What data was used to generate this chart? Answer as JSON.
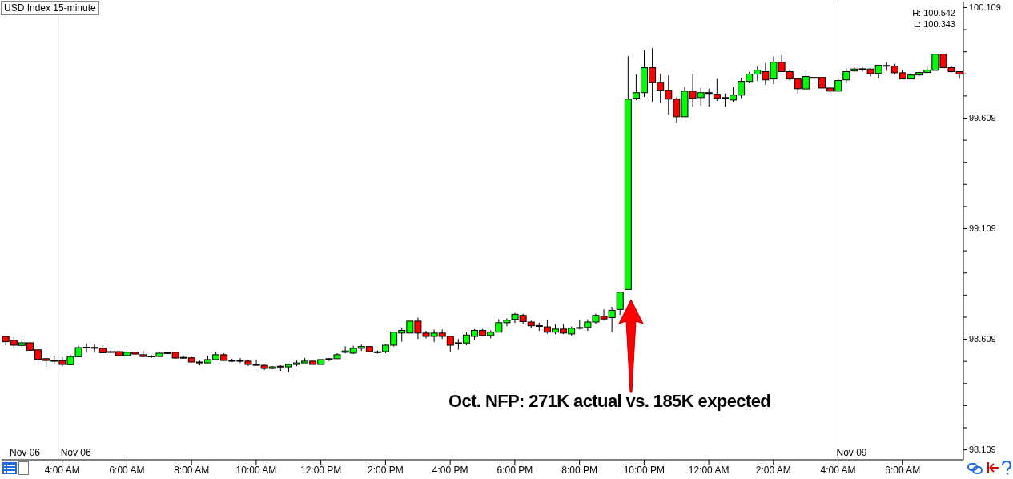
{
  "chart_data": {
    "type": "candlestick",
    "title": "USD Index 15-minute",
    "categories": [
      null,
      null,
      null,
      null,
      null,
      null,
      null,
      "4:00 AM",
      null,
      null,
      null,
      null,
      null,
      null,
      null,
      "6:00 AM",
      null,
      null,
      null,
      null,
      null,
      null,
      null,
      "8:00 AM",
      null,
      null,
      null,
      null,
      null,
      null,
      null,
      "10:00 AM",
      null,
      null,
      null,
      null,
      null,
      null,
      null,
      "12:00 PM",
      null,
      null,
      null,
      null,
      null,
      null,
      null,
      "2:00 PM",
      null,
      null,
      null,
      null,
      null,
      null,
      null,
      "4:00 PM",
      null,
      null,
      null,
      null,
      null,
      null,
      null,
      "6:00 PM",
      null,
      null,
      null,
      null,
      null,
      null,
      null,
      "8:00 PM",
      null,
      null,
      null,
      null,
      null,
      null,
      null,
      "10:00 PM",
      null,
      null,
      null,
      null,
      null,
      null,
      null,
      "12:00 AM",
      null,
      null,
      null,
      null,
      null,
      null,
      null,
      "2:00 AM",
      null,
      null,
      null,
      null,
      null,
      null,
      null,
      "4:00 AM",
      null,
      null,
      null,
      null,
      null,
      null,
      null,
      "6:00 AM",
      null,
      null,
      null,
      null,
      null,
      null,
      null
    ],
    "ohlc": [
      [
        98.622,
        98.626,
        98.582,
        98.598
      ],
      [
        98.604,
        98.619,
        98.57,
        98.582
      ],
      [
        98.581,
        98.611,
        98.573,
        98.593
      ],
      [
        98.593,
        98.604,
        98.559,
        98.559
      ],
      [
        98.561,
        98.571,
        98.501,
        98.519
      ],
      [
        98.521,
        98.521,
        98.483,
        98.513
      ],
      [
        98.513,
        98.535,
        98.495,
        98.513
      ],
      [
        98.512,
        98.529,
        98.487,
        98.495
      ],
      [
        98.494,
        98.539,
        98.491,
        98.531
      ],
      [
        98.53,
        98.58,
        98.527,
        98.571
      ],
      [
        98.573,
        98.59,
        98.548,
        98.573
      ],
      [
        98.572,
        98.585,
        98.548,
        98.568
      ],
      [
        98.568,
        98.582,
        98.548,
        98.548
      ],
      [
        98.553,
        98.565,
        98.548,
        98.55
      ],
      [
        98.553,
        98.571,
        98.535,
        98.535
      ],
      [
        98.535,
        98.55,
        98.535,
        98.55
      ],
      [
        98.55,
        98.55,
        98.539,
        98.542
      ],
      [
        98.539,
        98.558,
        98.529,
        98.531
      ],
      [
        98.533,
        98.539,
        98.524,
        98.533
      ],
      [
        98.531,
        98.55,
        98.531,
        98.546
      ],
      [
        98.546,
        98.551,
        98.542,
        98.548
      ],
      [
        98.55,
        98.55,
        98.521,
        98.524
      ],
      [
        98.527,
        98.534,
        98.522,
        98.527
      ],
      [
        98.525,
        98.529,
        98.504,
        98.506
      ],
      [
        98.506,
        98.512,
        98.49,
        98.502
      ],
      [
        98.502,
        98.535,
        98.502,
        98.517
      ],
      [
        98.517,
        98.551,
        98.517,
        98.539
      ],
      [
        98.539,
        98.546,
        98.511,
        98.513
      ],
      [
        98.513,
        98.521,
        98.506,
        98.513
      ],
      [
        98.513,
        98.524,
        98.502,
        98.51
      ],
      [
        98.51,
        98.517,
        98.488,
        98.495
      ],
      [
        98.495,
        98.517,
        98.491,
        98.491
      ],
      [
        98.491,
        98.495,
        98.47,
        98.477
      ],
      [
        98.477,
        98.488,
        98.473,
        98.484
      ],
      [
        98.487,
        98.491,
        98.466,
        98.484
      ],
      [
        98.484,
        98.499,
        98.459,
        98.495
      ],
      [
        98.495,
        98.513,
        98.488,
        98.502
      ],
      [
        98.502,
        98.524,
        98.502,
        98.51
      ],
      [
        98.51,
        98.51,
        98.495,
        98.495
      ],
      [
        98.495,
        98.517,
        98.495,
        98.517
      ],
      [
        98.517,
        98.524,
        98.51,
        98.521
      ],
      [
        98.521,
        98.546,
        98.521,
        98.539
      ],
      [
        98.55,
        98.577,
        98.545,
        98.556
      ],
      [
        98.546,
        98.58,
        98.543,
        98.568
      ],
      [
        98.568,
        98.585,
        98.556,
        98.576
      ],
      [
        98.576,
        98.576,
        98.553,
        98.553
      ],
      [
        98.552,
        98.558,
        98.544,
        98.552
      ],
      [
        98.553,
        98.586,
        98.546,
        98.582
      ],
      [
        98.582,
        98.641,
        98.576,
        98.641
      ],
      [
        98.637,
        98.659,
        98.598,
        98.649
      ],
      [
        98.637,
        98.691,
        98.637,
        98.691
      ],
      [
        98.691,
        98.707,
        98.61,
        98.637
      ],
      [
        98.637,
        98.647,
        98.613,
        98.622
      ],
      [
        98.622,
        98.653,
        98.596,
        98.637
      ],
      [
        98.637,
        98.653,
        98.61,
        98.622
      ],
      [
        98.622,
        98.622,
        98.55,
        98.582
      ],
      [
        98.593,
        98.61,
        98.562,
        98.59
      ],
      [
        98.592,
        98.641,
        98.582,
        98.628
      ],
      [
        98.622,
        98.655,
        98.607,
        98.649
      ],
      [
        98.649,
        98.655,
        98.622,
        98.626
      ],
      [
        98.626,
        98.649,
        98.613,
        98.641
      ],
      [
        98.641,
        98.699,
        98.641,
        98.684
      ],
      [
        98.684,
        98.704,
        98.668,
        98.695
      ],
      [
        98.699,
        98.728,
        98.683,
        98.722
      ],
      [
        98.717,
        98.725,
        98.677,
        98.689
      ],
      [
        98.687,
        98.693,
        98.659,
        98.67
      ],
      [
        98.671,
        98.684,
        98.647,
        98.667
      ],
      [
        98.665,
        98.695,
        98.634,
        98.641
      ],
      [
        98.641,
        98.677,
        98.632,
        98.655
      ],
      [
        98.655,
        98.677,
        98.632,
        98.637
      ],
      [
        98.633,
        98.667,
        98.626,
        98.659
      ],
      [
        98.662,
        98.695,
        98.653,
        98.662
      ],
      [
        98.662,
        98.699,
        98.647,
        98.687
      ],
      [
        98.687,
        98.725,
        98.679,
        98.717
      ],
      [
        98.713,
        98.744,
        98.693,
        98.701
      ],
      [
        98.707,
        98.756,
        98.641,
        98.74
      ],
      [
        98.744,
        98.822,
        98.719,
        98.822
      ],
      [
        98.834,
        99.889,
        98.834,
        99.695
      ],
      [
        99.699,
        99.807,
        99.69,
        99.724
      ],
      [
        99.724,
        99.916,
        99.705,
        99.837
      ],
      [
        99.837,
        99.925,
        99.683,
        99.771
      ],
      [
        99.771,
        99.809,
        99.679,
        99.735
      ],
      [
        99.735,
        99.802,
        99.625,
        99.695
      ],
      [
        99.695,
        99.703,
        99.588,
        99.615
      ],
      [
        99.615,
        99.75,
        99.615,
        99.731
      ],
      [
        99.731,
        99.809,
        99.661,
        99.699
      ],
      [
        99.702,
        99.746,
        99.665,
        99.724
      ],
      [
        99.724,
        99.742,
        99.661,
        99.724
      ],
      [
        99.717,
        99.786,
        99.687,
        99.699
      ],
      [
        99.702,
        99.72,
        99.661,
        99.699
      ],
      [
        99.691,
        99.75,
        99.683,
        99.713
      ],
      [
        99.713,
        99.79,
        99.699,
        99.775
      ],
      [
        99.775,
        99.819,
        99.766,
        99.808
      ],
      [
        99.808,
        99.842,
        99.777,
        99.826
      ],
      [
        99.819,
        99.859,
        99.759,
        99.782
      ],
      [
        99.786,
        99.889,
        99.763,
        99.862
      ],
      [
        99.862,
        99.895,
        99.819,
        99.819
      ],
      [
        99.819,
        99.826,
        99.779,
        99.786
      ],
      [
        99.786,
        99.786,
        99.719,
        99.742
      ],
      [
        99.741,
        99.819,
        99.738,
        99.797
      ],
      [
        99.793,
        99.795,
        99.741,
        99.79
      ],
      [
        99.793,
        99.793,
        99.738,
        99.745
      ],
      [
        99.745,
        99.745,
        99.719,
        99.731
      ],
      [
        99.731,
        99.786,
        99.731,
        99.779
      ],
      [
        99.782,
        99.834,
        99.77,
        99.819
      ],
      [
        99.822,
        99.838,
        99.819,
        99.831
      ],
      [
        99.829,
        99.838,
        99.819,
        99.832
      ],
      [
        99.831,
        99.834,
        99.798,
        99.81
      ],
      [
        99.811,
        99.848,
        99.788,
        99.848
      ],
      [
        99.847,
        99.862,
        99.822,
        99.847
      ],
      [
        99.844,
        99.855,
        99.807,
        99.814
      ],
      [
        99.814,
        99.826,
        99.786,
        99.786
      ],
      [
        99.786,
        99.808,
        99.786,
        99.804
      ],
      [
        99.804,
        99.819,
        99.795,
        99.815
      ],
      [
        99.815,
        99.844,
        99.815,
        99.826
      ],
      [
        99.825,
        99.898,
        99.825,
        99.898
      ],
      [
        99.898,
        99.898,
        99.837,
        99.837
      ],
      [
        99.837,
        99.844,
        99.815,
        99.819
      ],
      [
        99.819,
        99.819,
        99.786,
        99.808
      ]
    ],
    "colors": [
      "#ff0000",
      "#ff0000",
      "#00ff00",
      "#ff0000",
      "#ff0000",
      "#ff0000",
      "#00ff00",
      "#ff0000",
      "#00ff00",
      "#00ff00",
      "#00ff00",
      "#ff0000",
      "#ff0000",
      "#ff0000",
      "#ff0000",
      "#00ff00",
      "#ff0000",
      "#ff0000",
      "#00ff00",
      "#00ff00",
      "#00ff00",
      "#ff0000",
      "#00ff00",
      "#ff0000",
      "#ff0000",
      "#00ff00",
      "#00ff00",
      "#ff0000",
      "#00ff00",
      "#ff0000",
      "#ff0000",
      "#ff0000",
      "#ff0000",
      "#00ff00",
      "#ff0000",
      "#00ff00",
      "#00ff00",
      "#00ff00",
      "#ff0000",
      "#00ff00",
      "#00ff00",
      "#00ff00",
      "#00ff00",
      "#00ff00",
      "#00ff00",
      "#ff0000",
      "#00ff00",
      "#00ff00",
      "#00ff00",
      "#00ff00",
      "#00ff00",
      "#ff0000",
      "#ff0000",
      "#00ff00",
      "#ff0000",
      "#ff0000",
      "#ff0000",
      "#00ff00",
      "#00ff00",
      "#ff0000",
      "#00ff00",
      "#00ff00",
      "#00ff00",
      "#00ff00",
      "#ff0000",
      "#ff0000",
      "#ff0000",
      "#ff0000",
      "#00ff00",
      "#ff0000",
      "#00ff00",
      "#00ff00",
      "#00ff00",
      "#00ff00",
      "#ff0000",
      "#00ff00",
      "#00ff00",
      "#00ff00",
      "#00ff00",
      "#00ff00",
      "#ff0000",
      "#ff0000",
      "#ff0000",
      "#ff0000",
      "#00ff00",
      "#ff0000",
      "#00ff00",
      "#00ff00",
      "#ff0000",
      "#ff0000",
      "#00ff00",
      "#00ff00",
      "#00ff00",
      "#00ff00",
      "#ff0000",
      "#00ff00",
      "#ff0000",
      "#ff0000",
      "#ff0000",
      "#00ff00",
      "#ff0000",
      "#ff0000",
      "#ff0000",
      "#00ff00",
      "#00ff00",
      "#00ff00",
      "#00ff00",
      "#ff0000",
      "#00ff00",
      "#00ff00",
      "#ff0000",
      "#ff0000",
      "#00ff00",
      "#00ff00",
      "#00ff00",
      "#00ff00",
      "#ff0000",
      "#ff0000",
      "#ff0000"
    ],
    "ylim": [
      98.064,
      100.136
    ],
    "yticks": [
      98.109,
      {
        "value": 98.209,
        "label": null
      },
      {
        "value": 98.309,
        "label": null
      },
      {
        "value": 98.409,
        "label": null
      },
      {
        "value": 98.509,
        "label": null
      },
      98.609,
      {
        "value": 98.709,
        "label": null
      },
      {
        "value": 98.809,
        "label": null
      },
      {
        "value": 98.909,
        "label": null
      },
      {
        "value": 99.009,
        "label": null
      },
      99.109,
      {
        "value": 99.209,
        "label": null
      },
      {
        "value": 99.309,
        "label": null
      },
      {
        "value": 99.409,
        "label": null
      },
      {
        "value": 99.509,
        "label": null
      },
      99.609,
      {
        "value": 99.709,
        "label": null
      },
      {
        "value": 99.809,
        "label": null
      },
      {
        "value": 99.909,
        "label": null
      },
      {
        "value": 100.009,
        "label": null
      },
      100.109
    ],
    "annotations": [
      "H: 100.542",
      "L: 100.343",
      "Nov 06",
      "Oct. NFP: 271K actual vs. 185K expected",
      "Nov 09",
      "Nov 06"
    ]
  }
}
